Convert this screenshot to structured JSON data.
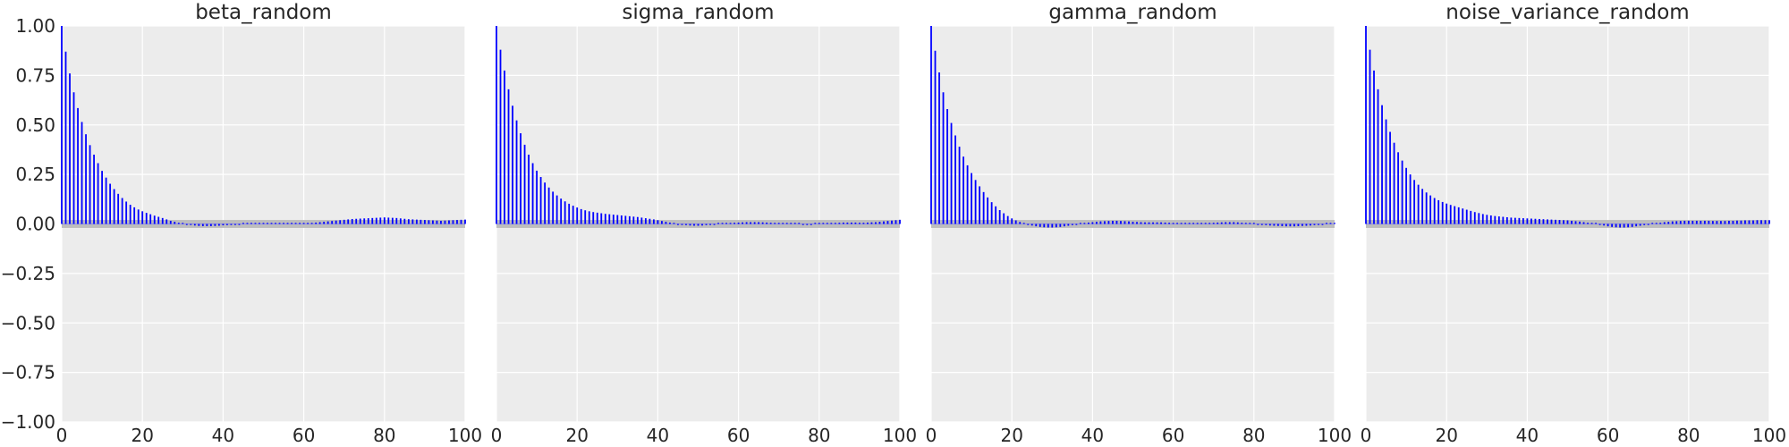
{
  "chart_data": [
    {
      "type": "bar",
      "title": "beta_random",
      "xlabel": "",
      "ylabel": "",
      "xlim": [
        0,
        100
      ],
      "ylim": [
        -1,
        1
      ],
      "xticks": [
        "0",
        "20",
        "40",
        "60",
        "80",
        "100"
      ],
      "yticks": [
        "1.00",
        "0.75",
        "0.50",
        "0.25",
        "0.00",
        "−0.25",
        "−0.50",
        "−0.75",
        "−1.00"
      ],
      "grid": true,
      "bar_color": "#0000ff",
      "band_color": "#bdbdbd",
      "band_halfwidth": 0.02,
      "lags": [
        0,
        1,
        2,
        3,
        4,
        5,
        6,
        7,
        8,
        9,
        10,
        11,
        12,
        13,
        14,
        15,
        16,
        17,
        18,
        19,
        20,
        21,
        22,
        23,
        24,
        25,
        26,
        27,
        28,
        29,
        30,
        31,
        32,
        33,
        34,
        35,
        36,
        37,
        38,
        39,
        40,
        41,
        42,
        43,
        44,
        45,
        46,
        47,
        48,
        49,
        50,
        51,
        52,
        53,
        54,
        55,
        56,
        57,
        58,
        59,
        60,
        61,
        62,
        63,
        64,
        65,
        66,
        67,
        68,
        69,
        70,
        71,
        72,
        73,
        74,
        75,
        76,
        77,
        78,
        79,
        80,
        81,
        82,
        83,
        84,
        85,
        86,
        87,
        88,
        89,
        90,
        91,
        92,
        93,
        94,
        95,
        96,
        97,
        98,
        99,
        100
      ],
      "values": [
        1.0,
        0.87,
        0.76,
        0.665,
        0.585,
        0.515,
        0.453,
        0.398,
        0.35,
        0.307,
        0.268,
        0.234,
        0.203,
        0.176,
        0.152,
        0.131,
        0.113,
        0.097,
        0.084,
        0.073,
        0.064,
        0.056,
        0.049,
        0.042,
        0.036,
        0.03,
        0.023,
        0.016,
        0.011,
        0.006,
        0.002,
        -0.002,
        -0.005,
        -0.008,
        -0.01,
        -0.011,
        -0.011,
        -0.011,
        -0.01,
        -0.009,
        -0.007,
        -0.006,
        -0.004,
        -0.002,
        -0.001,
        0.0,
        0.001,
        0.002,
        0.002,
        0.003,
        0.003,
        0.003,
        0.003,
        0.003,
        0.003,
        0.003,
        0.002,
        0.002,
        0.002,
        0.002,
        0.003,
        0.004,
        0.005,
        0.007,
        0.009,
        0.011,
        0.013,
        0.015,
        0.017,
        0.019,
        0.021,
        0.023,
        0.025,
        0.026,
        0.027,
        0.028,
        0.029,
        0.03,
        0.031,
        0.032,
        0.033,
        0.032,
        0.031,
        0.03,
        0.028,
        0.026,
        0.024,
        0.023,
        0.022,
        0.021,
        0.02,
        0.019,
        0.018,
        0.017,
        0.016,
        0.017,
        0.018,
        0.019,
        0.02,
        0.021,
        0.022
      ]
    },
    {
      "type": "bar",
      "title": "sigma_random",
      "xlabel": "",
      "ylabel": "",
      "xlim": [
        0,
        100
      ],
      "ylim": [
        -1,
        1
      ],
      "xticks": [
        "0",
        "20",
        "40",
        "60",
        "80",
        "100"
      ],
      "yticks": [],
      "grid": true,
      "bar_color": "#0000ff",
      "band_color": "#bdbdbd",
      "band_halfwidth": 0.02,
      "lags": [
        0,
        1,
        2,
        3,
        4,
        5,
        6,
        7,
        8,
        9,
        10,
        11,
        12,
        13,
        14,
        15,
        16,
        17,
        18,
        19,
        20,
        21,
        22,
        23,
        24,
        25,
        26,
        27,
        28,
        29,
        30,
        31,
        32,
        33,
        34,
        35,
        36,
        37,
        38,
        39,
        40,
        41,
        42,
        43,
        44,
        45,
        46,
        47,
        48,
        49,
        50,
        51,
        52,
        53,
        54,
        55,
        56,
        57,
        58,
        59,
        60,
        61,
        62,
        63,
        64,
        65,
        66,
        67,
        68,
        69,
        70,
        71,
        72,
        73,
        74,
        75,
        76,
        77,
        78,
        79,
        80,
        81,
        82,
        83,
        84,
        85,
        86,
        87,
        88,
        89,
        90,
        91,
        92,
        93,
        94,
        95,
        96,
        97,
        98,
        99,
        100
      ],
      "values": [
        1.0,
        0.88,
        0.775,
        0.68,
        0.597,
        0.523,
        0.458,
        0.4,
        0.35,
        0.307,
        0.269,
        0.237,
        0.209,
        0.184,
        0.163,
        0.144,
        0.128,
        0.114,
        0.102,
        0.092,
        0.083,
        0.075,
        0.069,
        0.064,
        0.06,
        0.057,
        0.054,
        0.051,
        0.049,
        0.047,
        0.045,
        0.043,
        0.041,
        0.039,
        0.037,
        0.035,
        0.032,
        0.029,
        0.026,
        0.023,
        0.019,
        0.015,
        0.011,
        0.007,
        0.003,
        -0.001,
        -0.004,
        -0.006,
        -0.008,
        -0.009,
        -0.009,
        -0.008,
        -0.006,
        -0.004,
        -0.002,
        0.0,
        0.002,
        0.004,
        0.005,
        0.006,
        0.007,
        0.008,
        0.009,
        0.009,
        0.009,
        0.009,
        0.008,
        0.007,
        0.006,
        0.005,
        0.004,
        0.003,
        0.002,
        0.001,
        0.0,
        0.0,
        -0.001,
        -0.001,
        -0.001,
        0.0,
        0.001,
        0.002,
        0.003,
        0.004,
        0.005,
        0.006,
        0.007,
        0.007,
        0.007,
        0.007,
        0.006,
        0.006,
        0.007,
        0.008,
        0.009,
        0.011,
        0.013,
        0.015,
        0.017,
        0.019,
        0.021
      ]
    },
    {
      "type": "bar",
      "title": "gamma_random",
      "xlabel": "",
      "ylabel": "",
      "xlim": [
        0,
        100
      ],
      "ylim": [
        -1,
        1
      ],
      "xticks": [
        "0",
        "20",
        "40",
        "60",
        "80",
        "100"
      ],
      "yticks": [],
      "grid": true,
      "bar_color": "#0000ff",
      "band_color": "#bdbdbd",
      "band_halfwidth": 0.02,
      "lags": [
        0,
        1,
        2,
        3,
        4,
        5,
        6,
        7,
        8,
        9,
        10,
        11,
        12,
        13,
        14,
        15,
        16,
        17,
        18,
        19,
        20,
        21,
        22,
        23,
        24,
        25,
        26,
        27,
        28,
        29,
        30,
        31,
        32,
        33,
        34,
        35,
        36,
        37,
        38,
        39,
        40,
        41,
        42,
        43,
        44,
        45,
        46,
        47,
        48,
        49,
        50,
        51,
        52,
        53,
        54,
        55,
        56,
        57,
        58,
        59,
        60,
        61,
        62,
        63,
        64,
        65,
        66,
        67,
        68,
        69,
        70,
        71,
        72,
        73,
        74,
        75,
        76,
        77,
        78,
        79,
        80,
        81,
        82,
        83,
        84,
        85,
        86,
        87,
        88,
        89,
        90,
        91,
        92,
        93,
        94,
        95,
        96,
        97,
        98,
        99,
        100
      ],
      "values": [
        1.0,
        0.875,
        0.765,
        0.665,
        0.58,
        0.51,
        0.447,
        0.39,
        0.34,
        0.296,
        0.257,
        0.222,
        0.19,
        0.161,
        0.134,
        0.11,
        0.089,
        0.07,
        0.054,
        0.04,
        0.028,
        0.018,
        0.01,
        0.003,
        -0.003,
        -0.008,
        -0.012,
        -0.015,
        -0.017,
        -0.018,
        -0.018,
        -0.017,
        -0.015,
        -0.012,
        -0.009,
        -0.006,
        -0.002,
        0.001,
        0.004,
        0.007,
        0.009,
        0.011,
        0.013,
        0.014,
        0.015,
        0.016,
        0.016,
        0.015,
        0.014,
        0.013,
        0.011,
        0.01,
        0.009,
        0.008,
        0.008,
        0.008,
        0.008,
        0.008,
        0.007,
        0.006,
        0.005,
        0.004,
        0.003,
        0.003,
        0.002,
        0.002,
        0.002,
        0.003,
        0.004,
        0.005,
        0.006,
        0.007,
        0.008,
        0.009,
        0.009,
        0.009,
        0.008,
        0.006,
        0.004,
        0.002,
        0.0,
        -0.002,
        -0.004,
        -0.006,
        -0.008,
        -0.009,
        -0.01,
        -0.011,
        -0.012,
        -0.012,
        -0.012,
        -0.011,
        -0.01,
        -0.009,
        -0.008,
        -0.006,
        -0.004,
        -0.002,
        0.0,
        0.002,
        0.003
      ]
    },
    {
      "type": "bar",
      "title": "noise_variance_random",
      "xlabel": "",
      "ylabel": "",
      "xlim": [
        0,
        100
      ],
      "ylim": [
        -1,
        1
      ],
      "xticks": [
        "0",
        "20",
        "40",
        "60",
        "80",
        "100"
      ],
      "yticks": [],
      "grid": true,
      "bar_color": "#0000ff",
      "band_color": "#bdbdbd",
      "band_halfwidth": 0.02,
      "lags": [
        0,
        1,
        2,
        3,
        4,
        5,
        6,
        7,
        8,
        9,
        10,
        11,
        12,
        13,
        14,
        15,
        16,
        17,
        18,
        19,
        20,
        21,
        22,
        23,
        24,
        25,
        26,
        27,
        28,
        29,
        30,
        31,
        32,
        33,
        34,
        35,
        36,
        37,
        38,
        39,
        40,
        41,
        42,
        43,
        44,
        45,
        46,
        47,
        48,
        49,
        50,
        51,
        52,
        53,
        54,
        55,
        56,
        57,
        58,
        59,
        60,
        61,
        62,
        63,
        64,
        65,
        66,
        67,
        68,
        69,
        70,
        71,
        72,
        73,
        74,
        75,
        76,
        77,
        78,
        79,
        80,
        81,
        82,
        83,
        84,
        85,
        86,
        87,
        88,
        89,
        90,
        91,
        92,
        93,
        94,
        95,
        96,
        97,
        98,
        99,
        100
      ],
      "values": [
        1.0,
        0.88,
        0.775,
        0.68,
        0.6,
        0.528,
        0.465,
        0.41,
        0.362,
        0.32,
        0.283,
        0.25,
        0.222,
        0.198,
        0.177,
        0.159,
        0.144,
        0.131,
        0.12,
        0.111,
        0.103,
        0.096,
        0.09,
        0.084,
        0.078,
        0.072,
        0.066,
        0.06,
        0.055,
        0.05,
        0.046,
        0.043,
        0.04,
        0.038,
        0.036,
        0.034,
        0.032,
        0.031,
        0.03,
        0.029,
        0.028,
        0.027,
        0.026,
        0.025,
        0.024,
        0.023,
        0.022,
        0.021,
        0.02,
        0.019,
        0.018,
        0.016,
        0.014,
        0.012,
        0.009,
        0.006,
        0.003,
        0.0,
        -0.004,
        -0.008,
        -0.012,
        -0.015,
        -0.017,
        -0.018,
        -0.018,
        -0.017,
        -0.015,
        -0.012,
        -0.009,
        -0.006,
        -0.003,
        0.0,
        0.003,
        0.006,
        0.009,
        0.011,
        0.013,
        0.014,
        0.015,
        0.016,
        0.016,
        0.016,
        0.016,
        0.016,
        0.016,
        0.016,
        0.015,
        0.015,
        0.015,
        0.015,
        0.016,
        0.016,
        0.017,
        0.017,
        0.018,
        0.018,
        0.018,
        0.019,
        0.019,
        0.019,
        0.019
      ]
    }
  ]
}
